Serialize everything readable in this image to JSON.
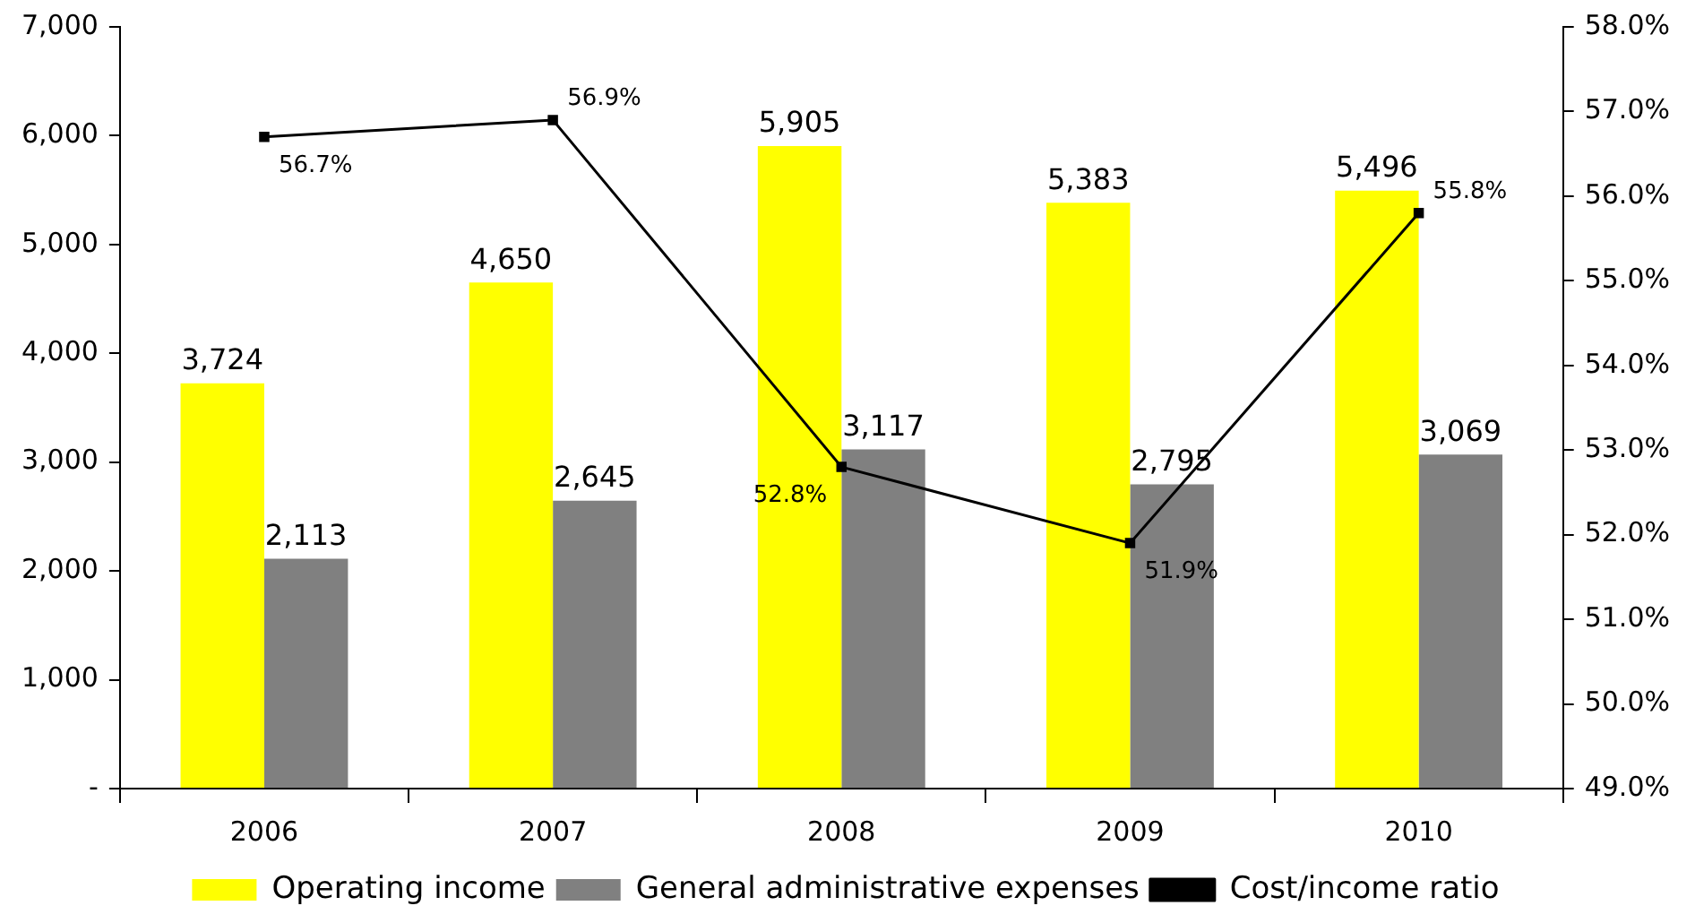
{
  "chart_data": {
    "type": "bar",
    "categories": [
      "2006",
      "2007",
      "2008",
      "2009",
      "2010"
    ],
    "series": [
      {
        "name": "Operating income",
        "color": "#ffff00",
        "values": [
          3724,
          4650,
          5905,
          5383,
          5496
        ],
        "value_labels": [
          "3,724",
          "4,650",
          "5,905",
          "5,383",
          "5,496"
        ]
      },
      {
        "name": "General administrative expenses",
        "color": "#808080",
        "values": [
          2113,
          2645,
          3117,
          2795,
          3069
        ],
        "value_labels": [
          "2,113",
          "2,645",
          "3,117",
          "2,795",
          "3,069"
        ]
      },
      {
        "name": "Cost/income ratio",
        "type": "line",
        "axis": "y2",
        "color": "#000000",
        "marker": "square",
        "values": [
          56.7,
          56.9,
          52.8,
          51.9,
          55.8
        ],
        "value_labels": [
          "56.7%",
          "56.9%",
          "52.8%",
          "51.9%",
          "55.8%"
        ]
      }
    ],
    "ylim": [
      0,
      7000
    ],
    "yticks": [
      {
        "value": 0,
        "label": "-"
      },
      {
        "value": 1000,
        "label": "1,000"
      },
      {
        "value": 2000,
        "label": "2,000"
      },
      {
        "value": 3000,
        "label": "3,000"
      },
      {
        "value": 4000,
        "label": "4,000"
      },
      {
        "value": 5000,
        "label": "5,000"
      },
      {
        "value": 6000,
        "label": "6,000"
      },
      {
        "value": 7000,
        "label": "7,000"
      }
    ],
    "y2lim": [
      49,
      58
    ],
    "y2ticks": [
      {
        "value": 49,
        "label": "49.0%"
      },
      {
        "value": 50,
        "label": "50.0%"
      },
      {
        "value": 51,
        "label": "51.0%"
      },
      {
        "value": 52,
        "label": "52.0%"
      },
      {
        "value": 53,
        "label": "53.0%"
      },
      {
        "value": 54,
        "label": "54.0%"
      },
      {
        "value": 55,
        "label": "55.0%"
      },
      {
        "value": 56,
        "label": "56.0%"
      },
      {
        "value": 57,
        "label": "57.0%"
      },
      {
        "value": 58,
        "label": "58.0%"
      }
    ],
    "grid": false,
    "legend": "bottom"
  }
}
